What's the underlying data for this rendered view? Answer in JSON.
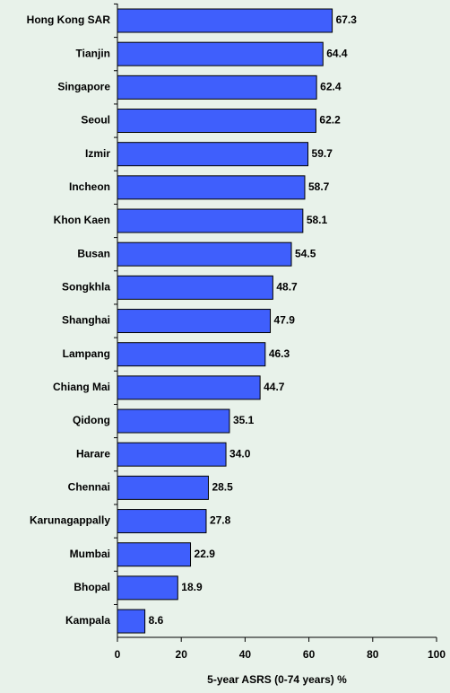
{
  "chart_data": {
    "type": "bar",
    "orientation": "horizontal",
    "x_label": "5-year ASRS (0-74 years) %",
    "categories": [
      "Hong Kong SAR",
      "Tianjin",
      "Singapore",
      "Seoul",
      "Izmir",
      "Incheon",
      "Khon Kaen",
      "Busan",
      "Songkhla",
      "Shanghai",
      "Lampang",
      "Chiang Mai",
      "Qidong",
      "Harare",
      "Chennai",
      "Karunagappally",
      "Mumbai",
      "Bhopal",
      "Kampala"
    ],
    "values": [
      67.3,
      64.4,
      62.4,
      62.2,
      59.7,
      58.7,
      58.1,
      54.5,
      48.7,
      47.9,
      46.3,
      44.7,
      35.1,
      34.0,
      28.5,
      27.8,
      22.9,
      18.9,
      8.6
    ],
    "value_labels": [
      "67.3",
      "64.4",
      "62.4",
      "62.2",
      "59.7",
      "58.7",
      "58.1",
      "54.5",
      "48.7",
      "47.9",
      "46.3",
      "44.7",
      "35.1",
      "34.0",
      "28.5",
      "27.8",
      "22.9",
      "18.9",
      "8.6"
    ],
    "color": "#3f5ffc",
    "xlim": [
      0,
      100
    ],
    "xticks": [
      0,
      20,
      40,
      60,
      80,
      100
    ]
  }
}
